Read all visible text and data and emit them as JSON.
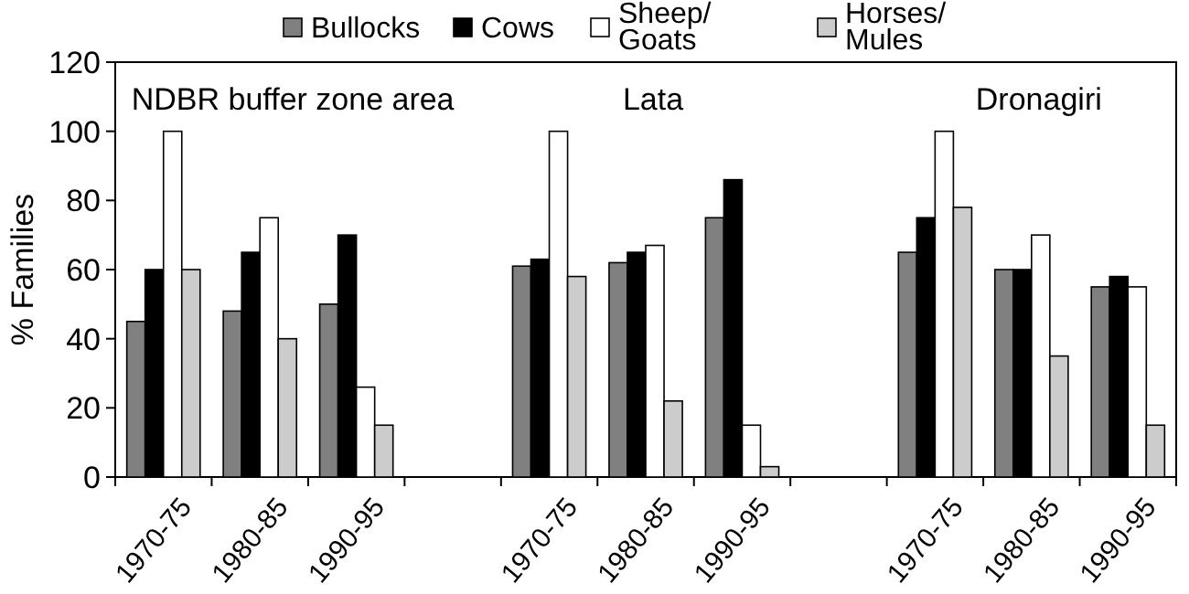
{
  "chart_data": {
    "type": "bar",
    "ylabel": "% Families",
    "categories": [
      "1970-75",
      "1980-85",
      "1990-95",
      null,
      "1970-75",
      "1980-85",
      "1990-95",
      null,
      "1970-75",
      "1980-85",
      "1990-95"
    ],
    "series": [
      {
        "name": "Bullocks",
        "color": "#808080",
        "values": [
          45,
          48,
          50,
          null,
          61,
          62,
          75,
          null,
          65,
          60,
          55
        ]
      },
      {
        "name": "Cows",
        "color": "#000000",
        "values": [
          60,
          65,
          70,
          null,
          63,
          65,
          86,
          null,
          75,
          60,
          58
        ]
      },
      {
        "name": "Sheep/Goats",
        "color": "#ffffff",
        "values": [
          100,
          75,
          26,
          null,
          100,
          67,
          15,
          null,
          100,
          70,
          55
        ]
      },
      {
        "name": "Horses/Mules",
        "color": "#cccccc",
        "values": [
          60,
          40,
          15,
          null,
          58,
          22,
          3,
          null,
          78,
          35,
          15
        ]
      }
    ],
    "ylim": [
      0,
      120
    ],
    "yticks": [
      0,
      20,
      40,
      60,
      80,
      100,
      120
    ],
    "grid": false,
    "legend": "top",
    "annotations": [
      "NDBR buffer zone area",
      "Lata",
      "Dronagiri"
    ]
  }
}
